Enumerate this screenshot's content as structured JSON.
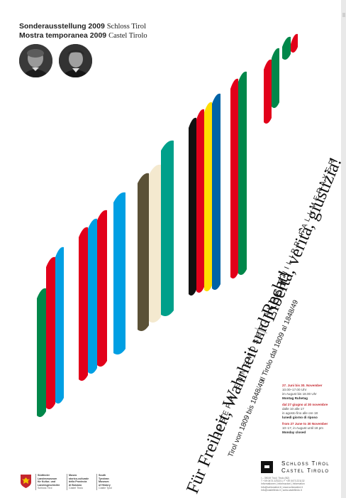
{
  "header": {
    "de": {
      "bold": "Sonderausstellung 2009",
      "place": "Schloss Tirol"
    },
    "it": {
      "bold": "Mostra temporanea 2009",
      "place": "Castel Tirolo"
    }
  },
  "portraits": [
    {
      "name": "portrait-left"
    },
    {
      "name": "portrait-right"
    }
  ],
  "stripe_colors": {
    "green": "#00874a",
    "red": "#e2001a",
    "blue": "#009fe3",
    "olive": "#5b5136",
    "cream": "#f4e9cf",
    "teal": "#00a08a",
    "black": "#111111",
    "yellow": "#ffdd00",
    "darkblue": "#0063a6"
  },
  "title": {
    "de": "Für Freiheit, Wahrheit und Recht!",
    "separator": "|",
    "it": "Libertà, verità, giustizia!"
  },
  "names": {
    "first": "Joseph Ennemoser",
    "and": "&",
    "second": "Jakob Philipp Fallmerayer"
  },
  "subtitle": {
    "de": "Tirol von 1809 bis 1848/49",
    "separator": "|",
    "it": "Il Tirolo dal 1809 al 1848/49"
  },
  "hours": [
    {
      "heading": "27. Juni bis 30. November",
      "line1": "10.00–17.00 Uhr",
      "line2": "im August bis 18.00 Uhr",
      "closed": "Montag Ruhetag"
    },
    {
      "heading": "dal 27 giugno al 30 novembre",
      "line1": "dalle 10 alle 17",
      "line2": "in agosto fino alle ore 18",
      "closed": "lunedì giorno di riposo"
    },
    {
      "heading": "from 27 June to 30 November",
      "line1": "10–17, in August until 18 pm",
      "line2": "",
      "closed": "Monday closed"
    }
  ],
  "logo": {
    "line1": "Schloss Tirol",
    "line2": "Castel Tirolo"
  },
  "contact": [
    "I – 39019 Tirol | Tirolo (BZ)",
    "T +39 0473 220221 | F +39 0473 221132",
    "Informationen | Informazioni | Information",
    "Info@schlosstirol.it | www.schlosstirol.it",
    "Info@casteltirolo.it | www.casteltirolo.it"
  ],
  "credits": [
    {
      "lines": [
        "Südtiroler",
        "Landesmuseum",
        "für Kultur- und",
        "Landesgeschichte"
      ],
      "place": "Schloss Tirol"
    },
    {
      "lines": [
        "Museo",
        "storico-culturale",
        "della Provincia",
        "di Bolzano"
      ],
      "place": "Castel Tirolo"
    },
    {
      "lines": [
        "South",
        "Tyrolean",
        "Museum",
        "of History"
      ],
      "place": "Castle Tyrol"
    }
  ],
  "icons": {
    "crest": "south-tyrol-eagle-crest-icon",
    "logo": "schloss-tirol-logo-icon"
  }
}
